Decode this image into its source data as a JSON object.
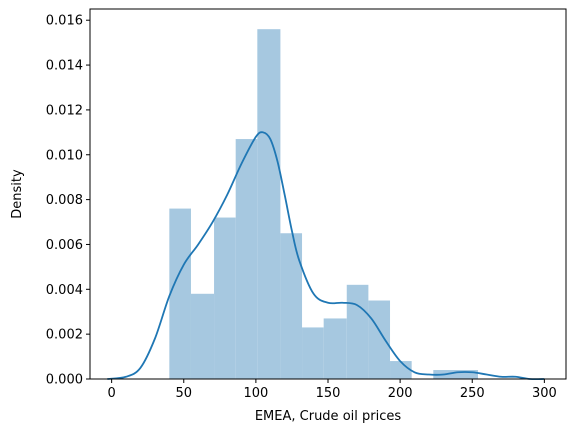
{
  "chart_data": {
    "type": "histogram",
    "xlabel": "EMEA, Crude oil prices",
    "ylabel": "Density",
    "xlim": [
      -15,
      315
    ],
    "ylim": [
      0,
      0.0165
    ],
    "x_ticks": [
      0,
      50,
      100,
      150,
      200,
      250,
      300
    ],
    "y_ticks": [
      0.0,
      0.002,
      0.004,
      0.006,
      0.008,
      0.01,
      0.012,
      0.014,
      0.016
    ],
    "y_tick_labels": [
      "0.000",
      "0.002",
      "0.004",
      "0.006",
      "0.008",
      "0.010",
      "0.012",
      "0.014",
      "0.016"
    ],
    "bins": [
      {
        "x0": 40,
        "x1": 55,
        "density": 0.0076
      },
      {
        "x0": 55,
        "x1": 71,
        "density": 0.0038
      },
      {
        "x0": 71,
        "x1": 86,
        "density": 0.0072
      },
      {
        "x0": 86,
        "x1": 101,
        "density": 0.0107
      },
      {
        "x0": 101,
        "x1": 117,
        "density": 0.0156
      },
      {
        "x0": 117,
        "x1": 132,
        "density": 0.0065
      },
      {
        "x0": 132,
        "x1": 147,
        "density": 0.0023
      },
      {
        "x0": 147,
        "x1": 163,
        "density": 0.0027
      },
      {
        "x0": 163,
        "x1": 178,
        "density": 0.0042
      },
      {
        "x0": 178,
        "x1": 193,
        "density": 0.0035
      },
      {
        "x0": 193,
        "x1": 208,
        "density": 0.0008
      },
      {
        "x0": 223,
        "x1": 254,
        "density": 0.0004
      }
    ],
    "kde": {
      "x": [
        -3,
        10,
        20,
        30,
        40,
        50,
        60,
        70,
        80,
        90,
        100,
        105,
        110,
        115,
        120,
        125,
        130,
        140,
        150,
        160,
        170,
        180,
        190,
        200,
        210,
        220,
        230,
        240,
        250,
        260,
        270,
        280,
        290,
        300
      ],
      "y": [
        0.0,
        0.0001,
        0.0005,
        0.0018,
        0.0037,
        0.0051,
        0.006,
        0.007,
        0.0082,
        0.0096,
        0.0108,
        0.011,
        0.0107,
        0.0097,
        0.0082,
        0.0066,
        0.0053,
        0.0038,
        0.0034,
        0.0034,
        0.0033,
        0.0027,
        0.0017,
        0.0008,
        0.0003,
        0.0002,
        0.0002,
        0.0003,
        0.0003,
        0.0002,
        0.0001,
        0.0001,
        0.0,
        0.0
      ]
    },
    "colors": {
      "bars": "#a6c8e0",
      "kde": "#1f77b4",
      "axes": "#000000"
    },
    "grid": false
  }
}
